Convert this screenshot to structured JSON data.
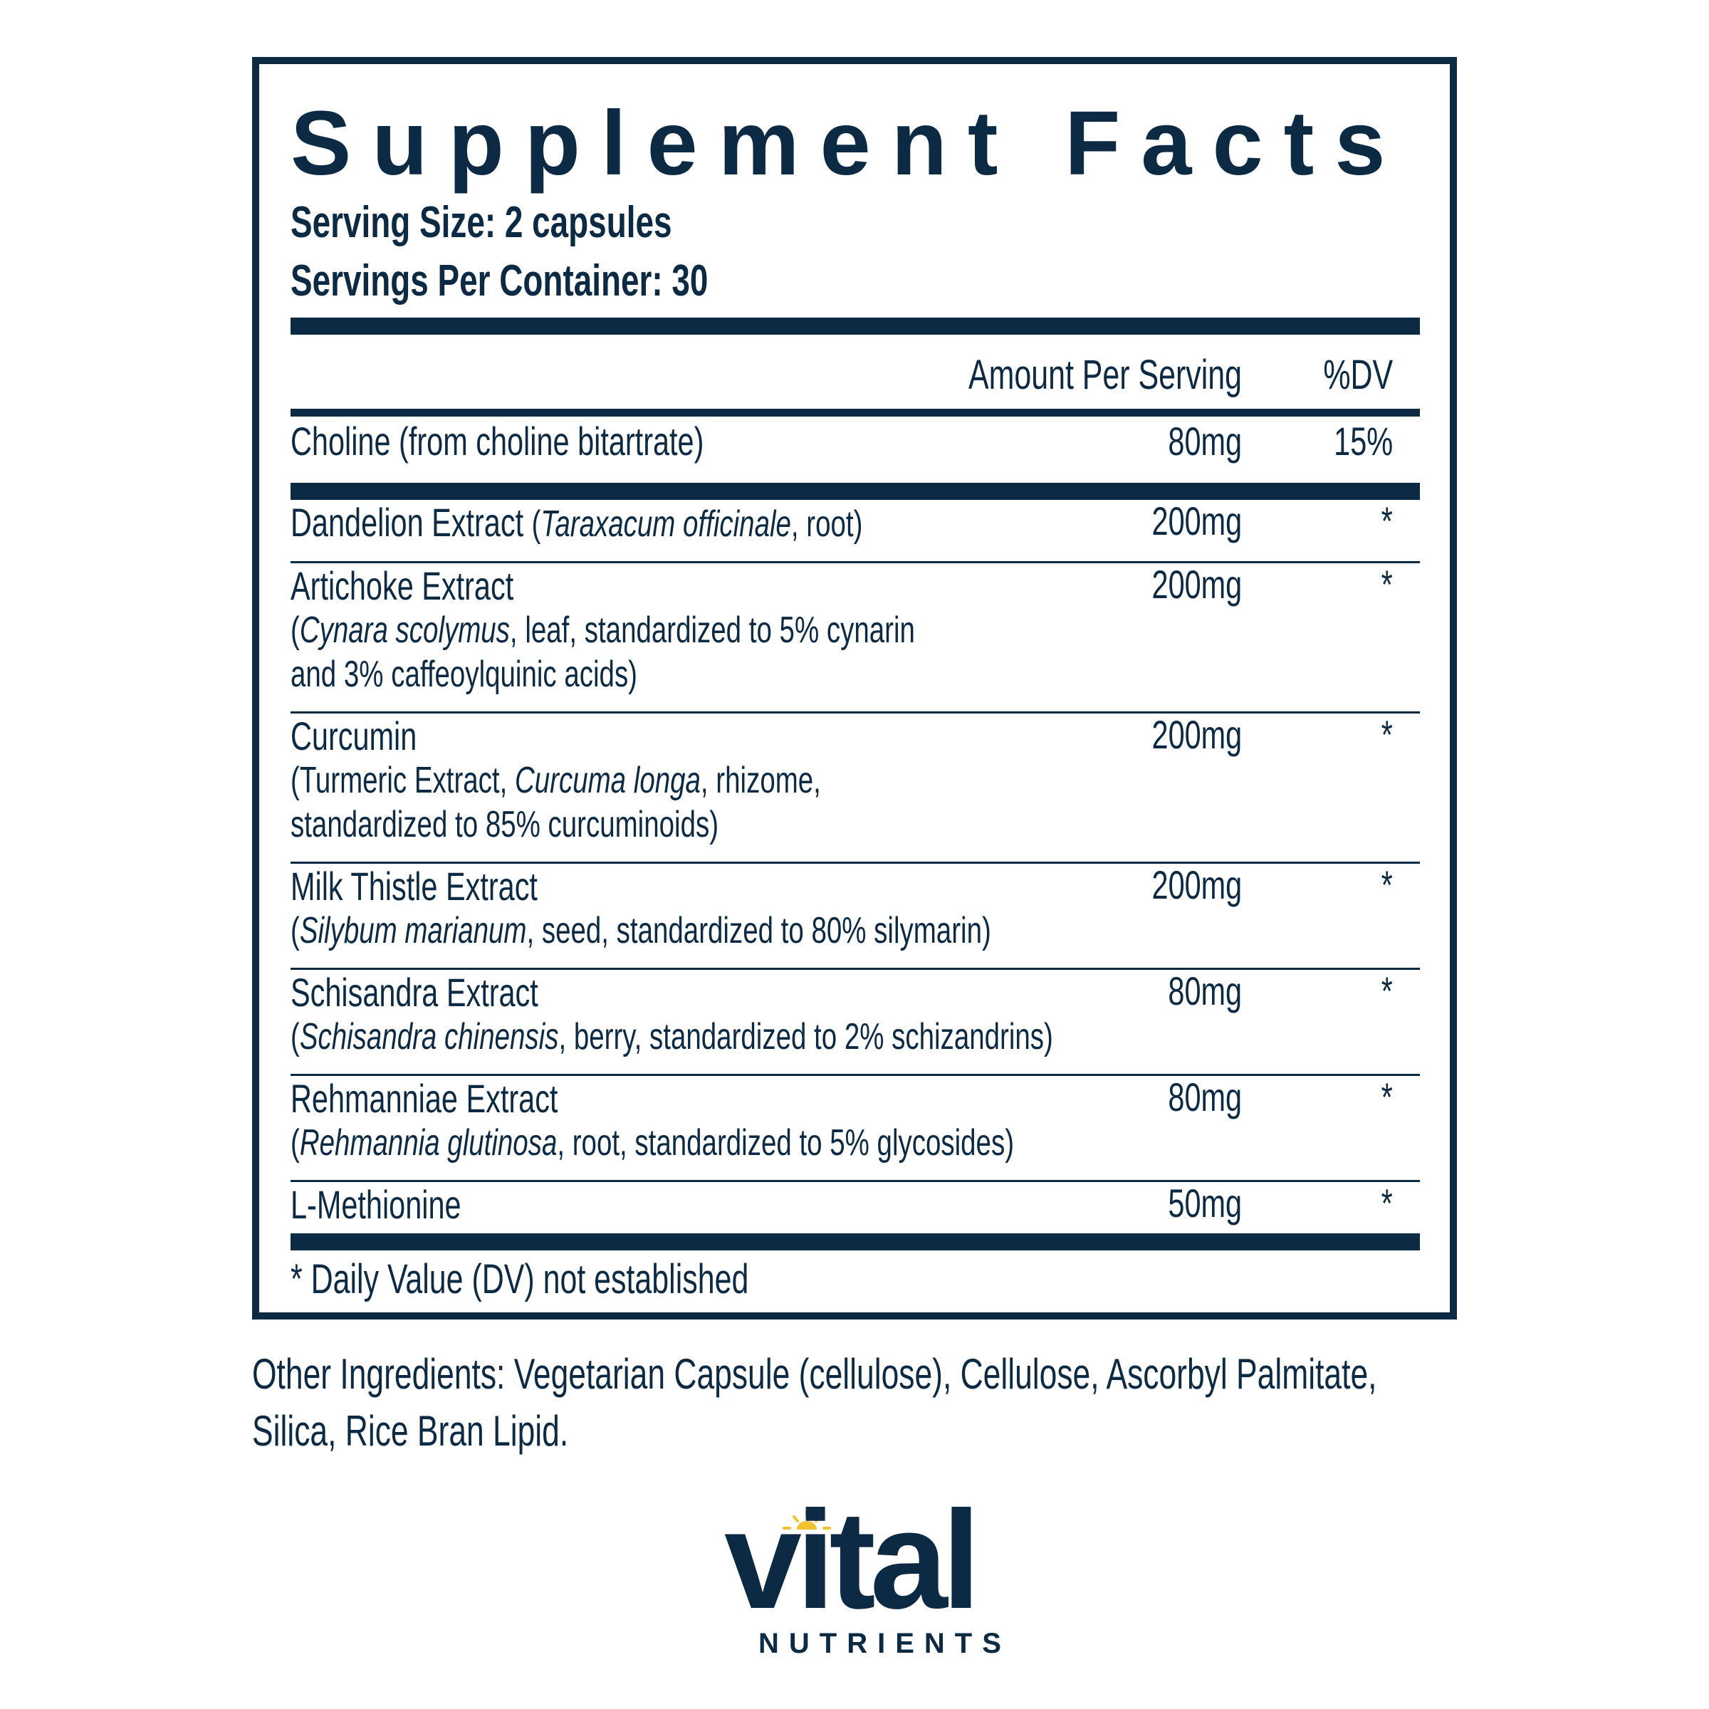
{
  "panel": {
    "title": "Supplement Facts",
    "serving_size": "Serving Size: 2 capsules",
    "servings_per_container": "Servings Per Container: 30",
    "header": {
      "amount": "Amount Per Serving",
      "dv": "%DV"
    },
    "main_nutrient": {
      "name": "Choline (from choline bitartrate)",
      "amount": "80mg",
      "dv": "15%"
    },
    "ingredients": [
      {
        "lines": [
          [
            {
              "t": "Dandelion Extract ",
              "i": false
            },
            {
              "t": "(",
              "i": false,
              "s": true
            },
            {
              "t": "Taraxacum officinale",
              "i": true,
              "s": true
            },
            {
              "t": ", root)",
              "i": false,
              "s": true
            }
          ]
        ],
        "amount": "200mg",
        "dv": "*"
      },
      {
        "lines": [
          [
            {
              "t": "Artichoke Extract",
              "i": false
            }
          ],
          [
            {
              "t": "(",
              "i": false
            },
            {
              "t": "Cynara scolymus",
              "i": true
            },
            {
              "t": ", leaf, standardized to 5% cynarin",
              "i": false
            }
          ],
          [
            {
              "t": "and 3% caffeoylquinic acids)",
              "i": false
            }
          ]
        ],
        "amount": "200mg",
        "dv": "*"
      },
      {
        "lines": [
          [
            {
              "t": "Curcumin",
              "i": false
            }
          ],
          [
            {
              "t": "(Turmeric Extract, ",
              "i": false
            },
            {
              "t": "Curcuma longa",
              "i": true
            },
            {
              "t": ", rhizome,",
              "i": false
            }
          ],
          [
            {
              "t": "standardized to 85% curcuminoids)",
              "i": false
            }
          ]
        ],
        "amount": "200mg",
        "dv": "*"
      },
      {
        "lines": [
          [
            {
              "t": "Milk Thistle Extract",
              "i": false
            }
          ],
          [
            {
              "t": "(",
              "i": false
            },
            {
              "t": "Silybum marianum",
              "i": true
            },
            {
              "t": ", seed, standardized to 80% silymarin)",
              "i": false
            }
          ]
        ],
        "amount": "200mg",
        "dv": "*"
      },
      {
        "lines": [
          [
            {
              "t": "Schisandra Extract",
              "i": false
            }
          ],
          [
            {
              "t": "(",
              "i": false
            },
            {
              "t": "Schisandra chinensis",
              "i": true
            },
            {
              "t": ", berry, standardized to 2% schizandrins)",
              "i": false
            }
          ]
        ],
        "amount": "80mg",
        "dv": "*"
      },
      {
        "lines": [
          [
            {
              "t": "Rehmanniae Extract",
              "i": false
            }
          ],
          [
            {
              "t": "(",
              "i": false
            },
            {
              "t": "Rehmannia glutinosa",
              "i": true
            },
            {
              "t": ", root, standardized to 5% glycosides)",
              "i": false
            }
          ]
        ],
        "amount": "80mg",
        "dv": "*"
      },
      {
        "lines": [
          [
            {
              "t": "L-Methionine",
              "i": false
            }
          ]
        ],
        "amount": "50mg",
        "dv": "*"
      }
    ],
    "footnote": "* Daily Value (DV) not established"
  },
  "other_ingredients": [
    "Other Ingredients: Vegetarian Capsule (cellulose), Cellulose, Ascorbyl Palmitate,",
    "Silica, Rice Bran Lipid."
  ],
  "logo": {
    "word": "vital",
    "subword": "NUTRIENTS",
    "brand_color": "#0d2a45",
    "sun_color": "#f2c12e"
  }
}
